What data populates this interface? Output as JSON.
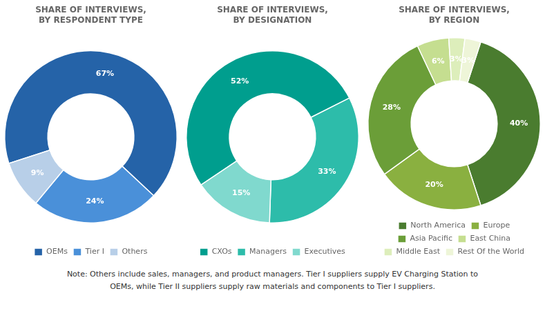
{
  "chart_data": [
    {
      "type": "pie",
      "title": "SHARE OF INTERVIEWS,\nBY RESPONDENT TYPE",
      "categories": [
        "OEMs",
        "Tier I",
        "Others"
      ],
      "values": [
        67,
        24,
        9
      ],
      "value_labels": [
        "67%",
        "24%",
        "9%"
      ],
      "colors": [
        "#2563a8",
        "#4a90d9",
        "#b8cfe8"
      ],
      "data_labels": true,
      "legend": "bottom"
    },
    {
      "type": "pie",
      "title": "SHARE OF INTERVIEWS,\nBY DESIGNATION",
      "categories": [
        "CXOs",
        "Managers",
        "Executives"
      ],
      "values": [
        52,
        33,
        15
      ],
      "value_labels": [
        "52%",
        "33%",
        "15%"
      ],
      "colors": [
        "#009e8e",
        "#2dbcaa",
        "#80d9ce"
      ],
      "data_labels": true,
      "legend": "bottom"
    },
    {
      "type": "pie",
      "title": "SHARE OF INTERVIEWS,\nBY REGION",
      "categories": [
        "North America",
        "Europe",
        "Asia Pacific",
        "East China",
        "Middle East",
        "Rest Of the World"
      ],
      "values": [
        40,
        20,
        28,
        6,
        3,
        3
      ],
      "value_labels": [
        "40%",
        "20%",
        "28%",
        "6%",
        "3%",
        "3%"
      ],
      "colors": [
        "#4a7c2f",
        "#8ab040",
        "#6b9e38",
        "#c5de90",
        "#ddeebb",
        "#eef5d8"
      ],
      "data_labels": true,
      "legend": "bottom"
    }
  ],
  "note": "Note: Others include sales, managers, and product managers. Tier I suppliers supply EV Charging Station to\nOEMs, while Tier II suppliers supply raw materials and components to Tier I suppliers."
}
